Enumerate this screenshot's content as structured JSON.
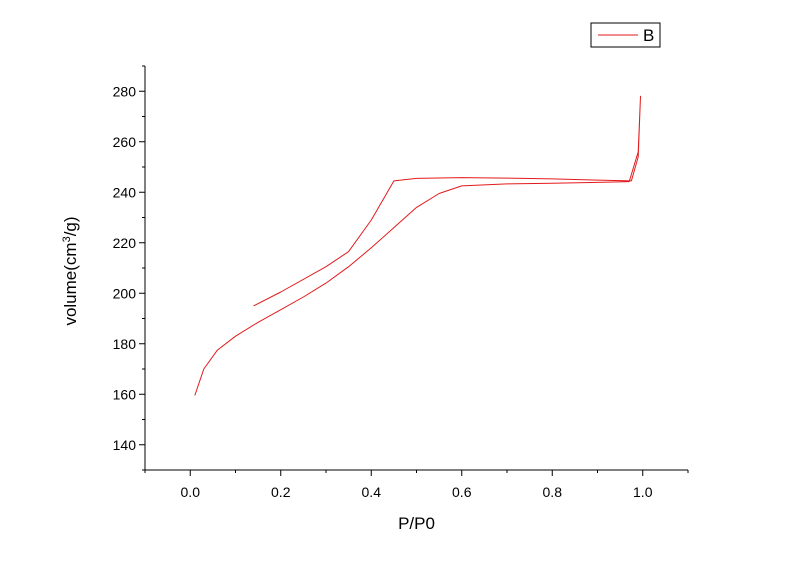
{
  "chart_data": {
    "type": "line",
    "title": "",
    "xlabel": "P/P0",
    "ylabel_main": "volume(cm",
    "ylabel_sup": "3",
    "ylabel_tail": "/g)",
    "xlim": [
      -0.1,
      1.1
    ],
    "ylim": [
      130,
      290
    ],
    "x_ticks": [
      0.0,
      0.2,
      0.4,
      0.6,
      0.8,
      1.0
    ],
    "x_tick_labels": [
      "0.0",
      "0.2",
      "0.4",
      "0.6",
      "0.8",
      "1.0"
    ],
    "y_ticks": [
      140,
      160,
      180,
      200,
      220,
      240,
      260,
      280
    ],
    "y_tick_labels": [
      "140",
      "160",
      "180",
      "200",
      "220",
      "240",
      "260",
      "280"
    ],
    "grid": false,
    "legend": {
      "position": "top-right",
      "entries": [
        "B"
      ]
    },
    "series": [
      {
        "name": "B",
        "color": "#e31a1c",
        "x": [
          0.01,
          0.03,
          0.06,
          0.1,
          0.15,
          0.2,
          0.25,
          0.3,
          0.35,
          0.4,
          0.45,
          0.5,
          0.55,
          0.6,
          0.7,
          0.8,
          0.9,
          0.97,
          0.99,
          0.995,
          0.99,
          0.975,
          0.9,
          0.8,
          0.7,
          0.6,
          0.5,
          0.45,
          0.4,
          0.35,
          0.3,
          0.2,
          0.14
        ],
        "y": [
          159.5,
          170,
          177.5,
          183,
          188.5,
          193.5,
          198.5,
          204,
          210.5,
          218,
          226,
          234,
          239.5,
          242.5,
          243.3,
          243.6,
          243.9,
          244.2,
          256,
          278,
          254,
          244.5,
          244.8,
          245.3,
          245.6,
          245.8,
          245.5,
          244.5,
          229,
          216.5,
          210.5,
          200.5,
          195
        ]
      }
    ]
  }
}
